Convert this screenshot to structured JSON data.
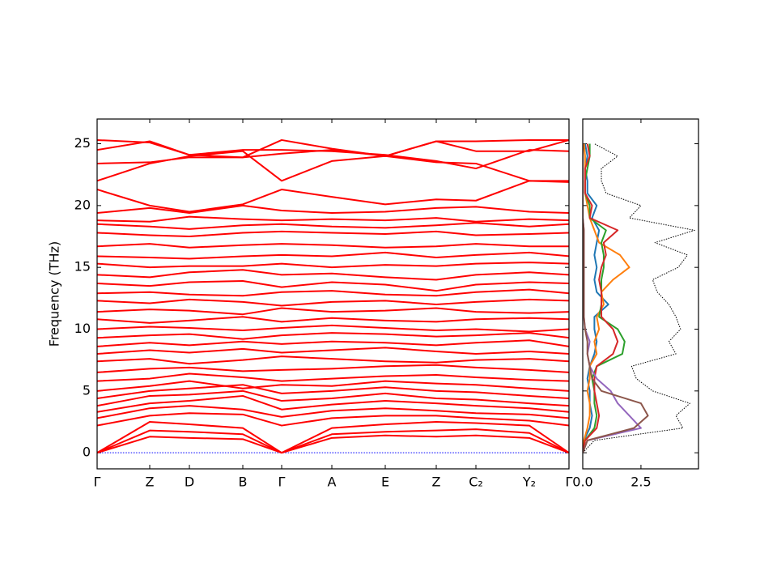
{
  "chart_data": [
    {
      "type": "line",
      "ylabel": "Frequency (THz)",
      "x": [
        0,
        0.65,
        1.14,
        1.8,
        2.28,
        2.9,
        3.56,
        4.19,
        4.68,
        5.34,
        5.83
      ],
      "xlim": [
        0,
        5.83
      ],
      "xticks": [
        {
          "value": 0,
          "label": "Γ"
        },
        {
          "value": 0.65,
          "label": "Z"
        },
        {
          "value": 1.14,
          "label": "D"
        },
        {
          "value": 1.8,
          "label": "B"
        },
        {
          "value": 2.28,
          "label": "Γ"
        },
        {
          "value": 2.9,
          "label": "A"
        },
        {
          "value": 3.56,
          "label": "E"
        },
        {
          "value": 4.19,
          "label": "Z"
        },
        {
          "value": 4.68,
          "label": "C₂"
        },
        {
          "value": 5.34,
          "label": "Y₂"
        },
        {
          "value": 5.83,
          "label": "Γ"
        }
      ],
      "ylim": [
        -1.3,
        27
      ],
      "yticks": [
        0,
        5,
        10,
        15,
        20,
        25
      ],
      "color": "#ff0000",
      "zero_line": {
        "value": 0,
        "color": "#0000ff"
      },
      "series": [
        {
          "values": [
            0,
            2.5,
            2.3,
            2.0,
            0,
            2.0,
            2.3,
            2.5,
            2.4,
            2.2,
            0
          ]
        },
        {
          "values": [
            0,
            1.8,
            1.7,
            1.5,
            0,
            1.5,
            1.7,
            1.8,
            1.9,
            1.6,
            0
          ]
        },
        {
          "values": [
            0,
            1.3,
            1.2,
            1.1,
            0,
            1.2,
            1.4,
            1.3,
            1.4,
            1.2,
            0
          ]
        },
        {
          "values": [
            2.2,
            3.0,
            3.2,
            3.1,
            2.2,
            2.8,
            3.0,
            3.0,
            2.8,
            2.6,
            2.2
          ]
        },
        {
          "values": [
            2.8,
            3.6,
            3.8,
            3.5,
            2.9,
            3.4,
            3.6,
            3.4,
            3.2,
            3.1,
            2.8
          ]
        },
        {
          "values": [
            3.3,
            4.0,
            4.2,
            4.6,
            3.5,
            3.9,
            4.2,
            4.0,
            3.8,
            3.6,
            3.3
          ]
        },
        {
          "values": [
            3.8,
            4.6,
            4.7,
            5.0,
            4.2,
            4.4,
            4.8,
            4.4,
            4.3,
            4.0,
            3.8
          ]
        },
        {
          "values": [
            4.4,
            5.0,
            5.2,
            5.5,
            4.8,
            5.0,
            5.3,
            5.0,
            4.9,
            4.6,
            4.4
          ]
        },
        {
          "values": [
            5.0,
            5.4,
            5.8,
            5.2,
            5.5,
            5.4,
            5.8,
            5.6,
            5.5,
            5.2,
            5.0
          ]
        },
        {
          "values": [
            5.8,
            6.0,
            6.4,
            6.1,
            5.8,
            6.0,
            6.2,
            6.3,
            6.1,
            5.9,
            5.8
          ]
        },
        {
          "values": [
            6.5,
            6.8,
            6.9,
            6.6,
            6.7,
            6.8,
            7.0,
            7.1,
            6.9,
            6.7,
            6.5
          ]
        },
        {
          "values": [
            7.4,
            7.6,
            7.2,
            7.5,
            7.8,
            7.6,
            7.4,
            7.3,
            7.5,
            7.6,
            7.4
          ]
        },
        {
          "values": [
            8.0,
            8.3,
            8.1,
            8.4,
            8.1,
            8.3,
            8.5,
            8.2,
            8.0,
            8.2,
            8.0
          ]
        },
        {
          "values": [
            8.6,
            8.9,
            8.7,
            9.0,
            8.8,
            9.0,
            8.9,
            8.7,
            8.9,
            9.1,
            8.6
          ]
        },
        {
          "values": [
            9.3,
            9.5,
            9.6,
            9.2,
            9.5,
            9.7,
            9.6,
            9.4,
            9.5,
            9.7,
            9.3
          ]
        },
        {
          "values": [
            10.0,
            10.2,
            10.1,
            9.9,
            10.1,
            10.3,
            10.1,
            9.9,
            10.0,
            9.8,
            10.0
          ]
        },
        {
          "values": [
            10.8,
            10.5,
            10.7,
            11.0,
            10.6,
            10.9,
            10.7,
            10.6,
            10.8,
            10.9,
            10.8
          ]
        },
        {
          "values": [
            11.4,
            11.6,
            11.5,
            11.2,
            11.7,
            11.4,
            11.5,
            11.7,
            11.4,
            11.3,
            11.4
          ]
        },
        {
          "values": [
            12.3,
            12.1,
            12.4,
            12.2,
            11.9,
            12.2,
            12.3,
            12.0,
            12.2,
            12.4,
            12.3
          ]
        },
        {
          "values": [
            12.9,
            13.0,
            12.8,
            12.7,
            13.0,
            13.1,
            12.8,
            12.7,
            13.0,
            13.2,
            12.9
          ]
        },
        {
          "values": [
            13.7,
            13.5,
            13.8,
            13.9,
            13.4,
            13.8,
            13.6,
            13.1,
            13.6,
            13.8,
            13.7
          ]
        },
        {
          "values": [
            14.4,
            14.2,
            14.6,
            14.8,
            14.4,
            14.5,
            14.2,
            14.0,
            14.4,
            14.6,
            14.4
          ]
        },
        {
          "values": [
            15.3,
            15.0,
            15.1,
            15.1,
            15.3,
            15.0,
            15.2,
            15.1,
            15.3,
            15.4,
            15.3
          ]
        },
        {
          "values": [
            15.9,
            15.8,
            15.7,
            15.9,
            16.0,
            15.9,
            16.2,
            15.8,
            16.0,
            16.2,
            15.9
          ]
        },
        {
          "values": [
            16.7,
            16.9,
            16.6,
            16.8,
            16.9,
            16.8,
            16.6,
            16.7,
            16.9,
            16.7,
            16.7
          ]
        },
        {
          "values": [
            17.8,
            17.6,
            17.5,
            17.8,
            17.9,
            17.8,
            17.7,
            17.9,
            17.6,
            17.7,
            17.8
          ]
        },
        {
          "values": [
            18.5,
            18.3,
            18.1,
            18.4,
            18.5,
            18.3,
            18.2,
            18.4,
            18.6,
            18.3,
            18.5
          ]
        },
        {
          "values": [
            18.8,
            18.7,
            19.1,
            18.9,
            18.8,
            18.9,
            18.8,
            19.0,
            18.7,
            18.9,
            18.8
          ]
        },
        {
          "values": [
            19.4,
            19.8,
            19.4,
            20.0,
            19.6,
            19.4,
            19.5,
            19.8,
            19.9,
            19.5,
            19.4
          ]
        },
        {
          "values": [
            21.3,
            20.0,
            19.5,
            20.1,
            21.3,
            20.7,
            20.1,
            20.5,
            20.4,
            22.0,
            21.9
          ]
        },
        {
          "values": [
            22.0,
            23.4,
            24.0,
            24.4,
            22.0,
            23.6,
            24.0,
            25.2,
            25.2,
            25.3,
            25.3
          ]
        },
        {
          "values": [
            23.4,
            23.5,
            23.9,
            23.9,
            24.2,
            24.5,
            24.0,
            23.5,
            23.4,
            22.0,
            22.0
          ]
        },
        {
          "values": [
            24.5,
            25.2,
            24.1,
            24.5,
            24.5,
            24.4,
            24.1,
            23.6,
            23.0,
            24.5,
            24.4
          ]
        },
        {
          "values": [
            25.3,
            25.1,
            24.1,
            23.9,
            25.3,
            24.6,
            24.0,
            25.2,
            24.4,
            24.4,
            25.3
          ]
        }
      ]
    },
    {
      "type": "line",
      "orientation": "horizontal",
      "y": [
        0,
        1,
        2,
        3,
        4,
        5,
        6,
        7,
        8,
        9,
        10,
        11,
        12,
        13,
        14,
        15,
        16,
        17,
        18,
        19,
        20,
        21,
        22,
        23,
        24,
        25
      ],
      "xlim": [
        0,
        4.97
      ],
      "xticks": [
        {
          "value": 0,
          "label": "0.0"
        },
        {
          "value": 2.5,
          "label": "2.5"
        }
      ],
      "ylim": [
        -1.3,
        27
      ],
      "yticks": [
        0,
        5,
        10,
        15,
        20,
        25
      ],
      "series": [
        {
          "color": "#000000",
          "linestyle": "dotted",
          "values": [
            0,
            0.5,
            4.3,
            4.0,
            4.6,
            3.0,
            2.3,
            2.1,
            4.0,
            3.7,
            4.2,
            4.0,
            3.7,
            3.2,
            3.0,
            4.1,
            4.5,
            3.1,
            4.8,
            2.0,
            2.5,
            1.0,
            0.8,
            0.8,
            1.5,
            0.5
          ]
        },
        {
          "color": "#1f77b4",
          "linestyle": "solid",
          "values": [
            0,
            0.05,
            0.3,
            0.4,
            0.3,
            0.3,
            0.2,
            0.3,
            0.5,
            0.6,
            0.5,
            0.5,
            1.1,
            0.6,
            0.5,
            0.6,
            0.5,
            0.6,
            0.7,
            0.4,
            0.6,
            0.2,
            0.2,
            0.1,
            0.2,
            0.1
          ]
        },
        {
          "color": "#ff7f0e",
          "linestyle": "solid",
          "values": [
            0,
            0.05,
            0.2,
            0.3,
            0.3,
            0.2,
            0.3,
            0.3,
            0.6,
            0.5,
            0.7,
            0.6,
            0.9,
            0.8,
            1.3,
            2.0,
            1.6,
            0.7,
            0.5,
            0.3,
            0.2,
            0.1,
            0.1,
            0.1,
            0.1,
            0.05
          ]
        },
        {
          "color": "#2ca02c",
          "linestyle": "solid",
          "values": [
            0,
            0.1,
            0.5,
            0.6,
            0.5,
            0.5,
            0.4,
            0.6,
            1.7,
            1.8,
            1.5,
            0.7,
            0.8,
            0.8,
            0.8,
            0.9,
            0.9,
            0.8,
            1.0,
            0.3,
            0.3,
            0.1,
            0.1,
            0.2,
            0.3,
            0.3
          ]
        },
        {
          "color": "#d62728",
          "linestyle": "solid",
          "values": [
            0,
            0.1,
            0.6,
            0.7,
            0.6,
            0.5,
            0.5,
            0.6,
            1.3,
            1.5,
            1.3,
            0.8,
            0.8,
            0.8,
            0.7,
            0.8,
            1.0,
            0.9,
            1.5,
            0.3,
            0.4,
            0.1,
            0.1,
            0.1,
            0.3,
            0.2
          ]
        },
        {
          "color": "#9467bd",
          "linestyle": "solid",
          "values": [
            0,
            0.2,
            2.5,
            2.0,
            1.5,
            1.2,
            0.6,
            0.3,
            0.2,
            0.3,
            0.1,
            0.05,
            0.05,
            0.05,
            0.05,
            0.05,
            0.05,
            0.05,
            0.05,
            0,
            0,
            0,
            0,
            0,
            0,
            0
          ]
        },
        {
          "color": "#8c564b",
          "linestyle": "solid",
          "values": [
            0,
            0.2,
            2.2,
            2.8,
            2.5,
            0.8,
            0.4,
            0.3,
            0.2,
            0.2,
            0.1,
            0.05,
            0.05,
            0.05,
            0.05,
            0.05,
            0.05,
            0.05,
            0.05,
            0,
            0,
            0,
            0,
            0,
            0,
            0
          ]
        }
      ]
    }
  ]
}
